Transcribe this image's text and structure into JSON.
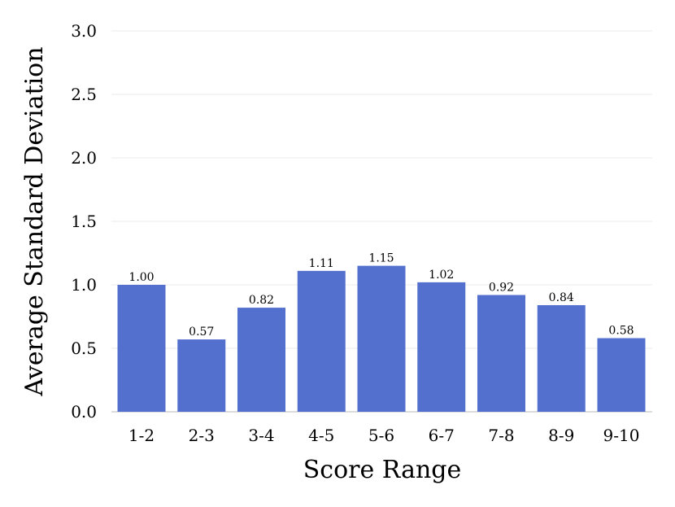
{
  "chart_data": {
    "type": "bar",
    "title": "",
    "xlabel": "Score Range",
    "ylabel": "Average Standard Deviation",
    "categories": [
      "1-2",
      "2-3",
      "3-4",
      "4-5",
      "5-6",
      "6-7",
      "7-8",
      "8-9",
      "9-10"
    ],
    "values": [
      1.0,
      0.57,
      0.82,
      1.11,
      1.15,
      1.02,
      0.92,
      0.84,
      0.58
    ],
    "data_labels": [
      "1.00",
      "0.57",
      "0.82",
      "1.11",
      "1.15",
      "1.02",
      "0.92",
      "0.84",
      "0.58"
    ],
    "ylim": [
      0,
      3.0
    ],
    "yticks": [
      "0.0",
      "0.5",
      "1.0",
      "1.5",
      "2.0",
      "2.5",
      "3.0"
    ],
    "grid": true,
    "bar_color": "#5470cf",
    "grid_color": "#ebebeb"
  }
}
